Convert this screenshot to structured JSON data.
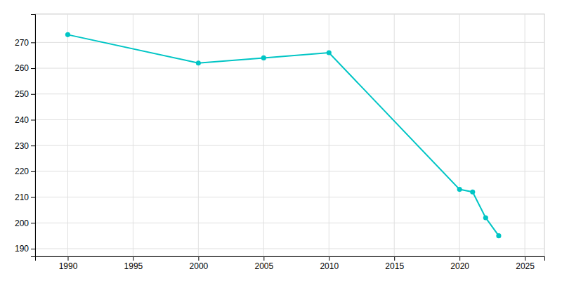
{
  "chart_data": {
    "type": "line",
    "x": [
      1990,
      2000,
      2005,
      2010,
      2020,
      2021,
      2022,
      2023
    ],
    "values": [
      273,
      262,
      264,
      266,
      213,
      212,
      202,
      195
    ],
    "color": "#00c5c5",
    "marker": "circle",
    "xlim": [
      1987.5,
      2026.5
    ],
    "ylim": [
      187,
      281
    ],
    "xticks": [
      1990,
      1995,
      2000,
      2005,
      2010,
      2015,
      2020,
      2025
    ],
    "yticks": [
      190,
      200,
      210,
      220,
      230,
      240,
      250,
      260,
      270
    ],
    "grid": true
  }
}
